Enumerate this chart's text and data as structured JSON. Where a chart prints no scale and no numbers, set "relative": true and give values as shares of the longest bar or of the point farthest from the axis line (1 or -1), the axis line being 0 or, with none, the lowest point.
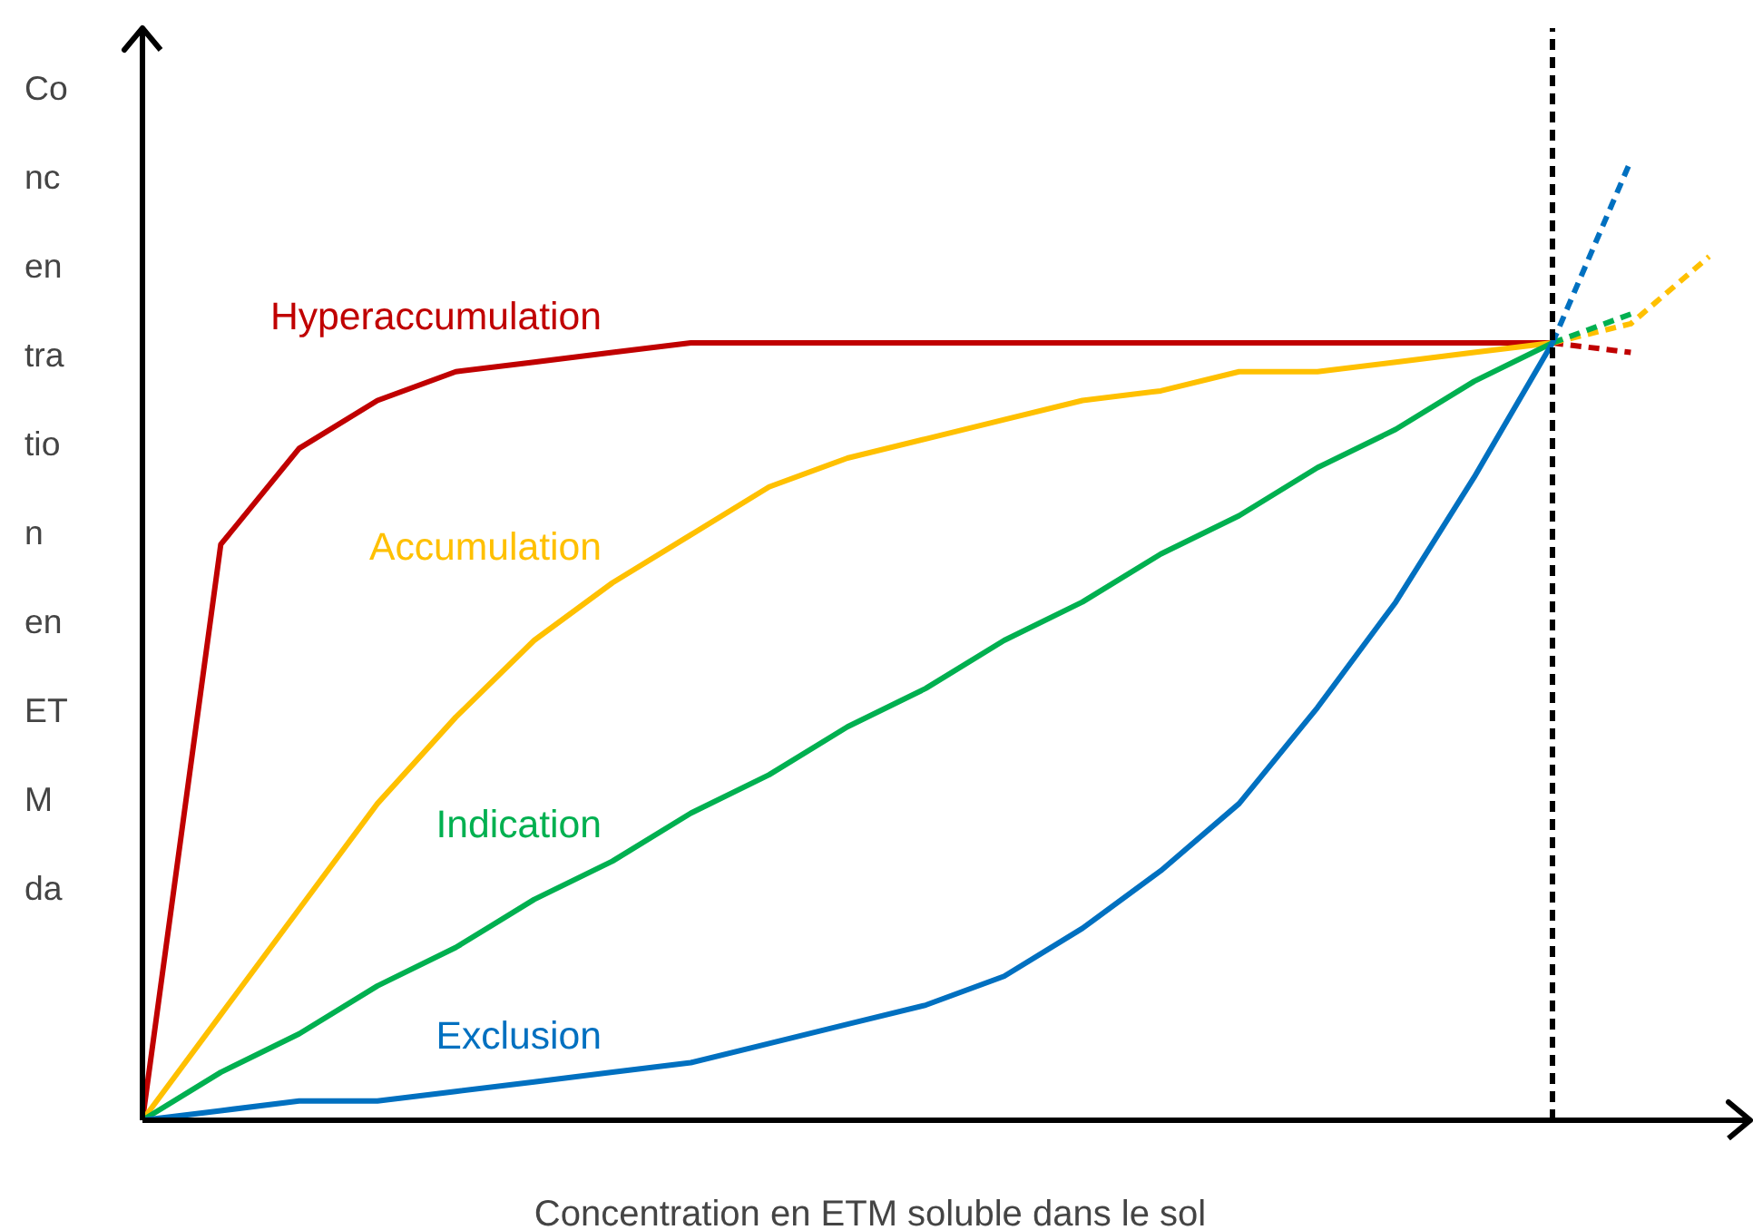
{
  "chart_data": {
    "type": "line",
    "relative": true,
    "tick_labels": false,
    "grid": false,
    "xlabel": "Concentration en ETM soluble dans le sol",
    "ylabel": "Co\nnc\nen\ntra\ntio\nn\nen\nET\nM\nda",
    "categories": [
      null,
      null,
      null,
      null,
      null,
      null,
      null,
      null,
      null,
      null,
      null,
      null,
      null,
      null,
      null,
      null,
      null,
      null,
      null,
      null,
      null
    ],
    "series": [
      {
        "name": "Hyperaccumulation",
        "color": "#c00000",
        "line_style": "solid",
        "values": [
          0,
          0.6,
          0.7,
          0.75,
          0.78,
          0.79,
          0.8,
          0.81,
          0.81,
          0.81,
          0.81,
          0.81,
          0.81,
          0.81,
          0.81,
          0.81,
          0.81,
          0.81,
          0.81,
          null,
          null
        ]
      },
      {
        "color": "#c00000",
        "line_style": "dashed",
        "values": [
          null,
          null,
          null,
          null,
          null,
          null,
          null,
          null,
          null,
          null,
          null,
          null,
          null,
          null,
          null,
          null,
          null,
          null,
          0.81,
          0.8,
          null
        ]
      },
      {
        "name": "Accumulation",
        "color": "#ffc000",
        "line_style": "solid",
        "values": [
          0,
          0.11,
          0.22,
          0.33,
          0.42,
          0.5,
          0.56,
          0.61,
          0.66,
          0.69,
          0.71,
          0.73,
          0.75,
          0.76,
          0.78,
          0.78,
          0.79,
          0.8,
          0.81,
          null,
          null
        ]
      },
      {
        "color": "#ffc000",
        "line_style": "dashed",
        "values": [
          null,
          null,
          null,
          null,
          null,
          null,
          null,
          null,
          null,
          null,
          null,
          null,
          null,
          null,
          null,
          null,
          null,
          null,
          0.81,
          0.83,
          0.9
        ]
      },
      {
        "name": "Indication",
        "color": "#00b050",
        "line_style": "solid",
        "values": [
          0,
          0.05,
          0.09,
          0.14,
          0.18,
          0.23,
          0.27,
          0.32,
          0.36,
          0.41,
          0.45,
          0.5,
          0.54,
          0.59,
          0.63,
          0.68,
          0.72,
          0.77,
          0.81,
          null,
          null
        ]
      },
      {
        "color": "#00b050",
        "line_style": "dashed",
        "values": [
          null,
          null,
          null,
          null,
          null,
          null,
          null,
          null,
          null,
          null,
          null,
          null,
          null,
          null,
          null,
          null,
          null,
          null,
          0.81,
          0.84,
          null
        ]
      },
      {
        "name": "Exclusion",
        "color": "#0070c0",
        "line_style": "solid",
        "values": [
          0,
          0.01,
          0.02,
          0.02,
          0.03,
          0.04,
          0.05,
          0.06,
          0.08,
          0.1,
          0.12,
          0.15,
          0.2,
          0.26,
          0.33,
          0.43,
          0.54,
          0.67,
          0.81,
          null,
          null
        ]
      },
      {
        "color": "#0070c0",
        "line_style": "dashed",
        "values": [
          null,
          null,
          null,
          null,
          null,
          null,
          null,
          null,
          null,
          null,
          null,
          null,
          null,
          null,
          null,
          null,
          null,
          null,
          0.81,
          1,
          null
        ]
      }
    ]
  }
}
